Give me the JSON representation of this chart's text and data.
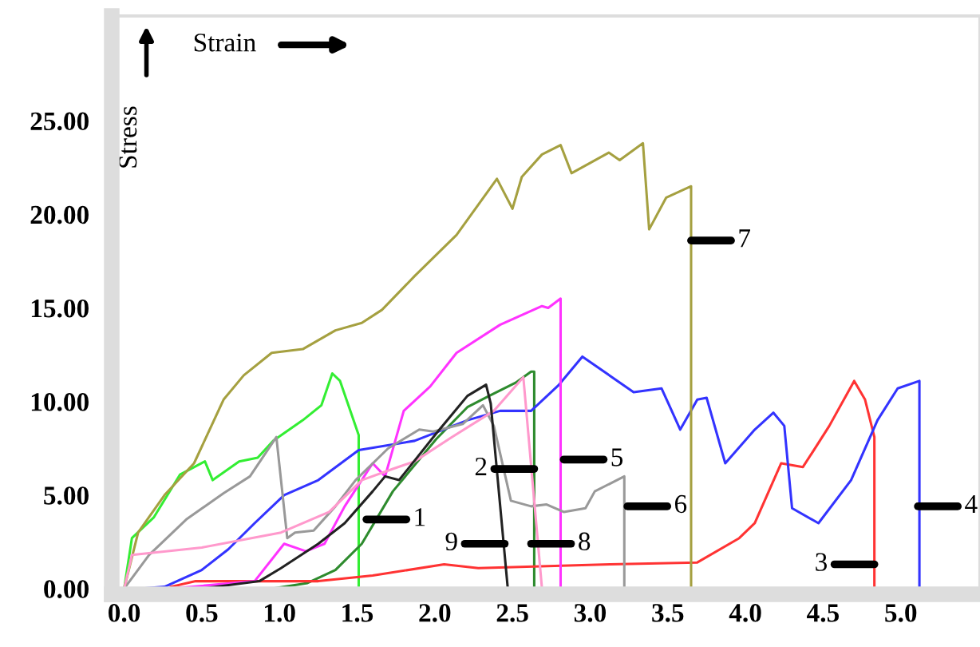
{
  "chart_data": {
    "type": "line",
    "xlabel": "Strain",
    "ylabel": "Stress",
    "xlim": [
      -0.08,
      5.51
    ],
    "ylim": [
      -0.3,
      30.6
    ],
    "xticks": [
      {
        "value": 0,
        "label": "0.0"
      },
      {
        "value": 0.5,
        "label": "0.5"
      },
      {
        "value": 1,
        "label": "1.0"
      },
      {
        "value": 1.5,
        "label": "1.5"
      },
      {
        "value": 2,
        "label": "2.0"
      },
      {
        "value": 2.5,
        "label": "2.5"
      },
      {
        "value": 3,
        "label": "3.0"
      },
      {
        "value": 3.5,
        "label": "3.5"
      },
      {
        "value": 4,
        "label": "4.0"
      },
      {
        "value": 4.5,
        "label": "4.5"
      },
      {
        "value": 5,
        "label": "5.0"
      }
    ],
    "yticks": [
      {
        "value": 0,
        "label": "0.00"
      },
      {
        "value": 5,
        "label": "5.00"
      },
      {
        "value": 10,
        "label": "10.00"
      },
      {
        "value": 15,
        "label": "15.00"
      },
      {
        "value": 20,
        "label": "20.00"
      },
      {
        "value": 25,
        "label": "25.00"
      }
    ],
    "grid": false,
    "legend": false,
    "marker": "none",
    "line_style": "solid",
    "series": [
      {
        "color": "#33ee33",
        "x": [
          0,
          0.05,
          0.19,
          0.36,
          0.52,
          0.57,
          0.74,
          0.86,
          0.96,
          1.15,
          1.27,
          1.34,
          1.39,
          1.51,
          1.51
        ],
        "values": [
          0,
          2.7,
          3.8,
          6.1,
          6.8,
          5.8,
          6.8,
          7.0,
          7.9,
          9.0,
          9.8,
          11.5,
          11.1,
          8.2,
          0
        ]
      },
      {
        "color": "#2e8b2e",
        "x": [
          0.95,
          1.18,
          1.36,
          1.53,
          1.73,
          2.01,
          2.21,
          2.35,
          2.52,
          2.62,
          2.64,
          2.64
        ],
        "values": [
          0,
          0.3,
          1.0,
          2.4,
          5.2,
          8.0,
          9.7,
          10.3,
          11.0,
          11.6,
          11.6,
          0
        ]
      },
      {
        "color": "#ff3333",
        "x": [
          0.3,
          0.46,
          1.18,
          1.25,
          1.6,
          2.06,
          2.28,
          3.13,
          3.69,
          3.96,
          4.06,
          4.23,
          4.37,
          4.44,
          4.54,
          4.7,
          4.77,
          4.83,
          4.83
        ],
        "values": [
          0.1,
          0.4,
          0.4,
          0.4,
          0.7,
          1.3,
          1.1,
          1.3,
          1.4,
          2.7,
          3.5,
          6.7,
          6.5,
          7.4,
          8.7,
          11.1,
          10.1,
          8.1,
          0
        ]
      },
      {
        "color": "#3333ff",
        "x": [
          0.1,
          0.26,
          0.5,
          0.67,
          0.84,
          1.03,
          1.25,
          1.51,
          1.87,
          2.21,
          2.42,
          2.62,
          2.8,
          2.95,
          3.28,
          3.46,
          3.58,
          3.69,
          3.75,
          3.87,
          4.06,
          4.18,
          4.25,
          4.3,
          4.47,
          4.68,
          4.85,
          4.98,
          5.12,
          5.12
        ],
        "values": [
          0,
          0.1,
          1.0,
          2.1,
          3.5,
          5.0,
          5.8,
          7.4,
          7.9,
          9.0,
          9.5,
          9.5,
          10.9,
          12.4,
          10.5,
          10.7,
          8.5,
          10.1,
          10.2,
          6.7,
          8.5,
          9.4,
          8.7,
          4.3,
          3.5,
          5.8,
          9.0,
          10.7,
          11.1,
          0
        ]
      },
      {
        "color": "#ff33ff",
        "x": [
          0.3,
          0.84,
          1.03,
          1.17,
          1.29,
          1.42,
          1.6,
          1.68,
          1.8,
          1.97,
          2.14,
          2.42,
          2.69,
          2.73,
          2.81,
          2.81
        ],
        "values": [
          0,
          0.4,
          2.4,
          2.0,
          2.4,
          4.4,
          6.7,
          6.0,
          9.5,
          10.8,
          12.6,
          14.1,
          15.1,
          15.0,
          15.5,
          0
        ]
      },
      {
        "color": "#999999",
        "x": [
          0,
          0.16,
          0.4,
          0.64,
          0.81,
          0.98,
          1.05,
          1.1,
          1.22,
          1.36,
          1.49,
          1.7,
          1.9,
          1.99,
          2.18,
          2.31,
          2.38,
          2.49,
          2.62,
          2.72,
          2.83,
          2.97,
          3.03,
          3.22,
          3.22
        ],
        "values": [
          0,
          1.8,
          3.7,
          5.1,
          6.0,
          8.1,
          2.7,
          3.0,
          3.1,
          4.4,
          5.8,
          7.5,
          8.5,
          8.4,
          8.8,
          9.8,
          8.7,
          4.7,
          4.4,
          4.5,
          4.1,
          4.3,
          5.2,
          6.0,
          0
        ]
      },
      {
        "color": "#a5a040",
        "x": [
          0,
          0.09,
          0.26,
          0.45,
          0.64,
          0.77,
          0.95,
          1.15,
          1.36,
          1.53,
          1.66,
          1.87,
          2.14,
          2.4,
          2.5,
          2.56,
          2.69,
          2.81,
          2.88,
          3.12,
          3.19,
          3.34,
          3.38,
          3.49,
          3.65,
          3.65
        ],
        "values": [
          0,
          3.0,
          5.0,
          6.7,
          10.1,
          11.4,
          12.6,
          12.8,
          13.8,
          14.2,
          14.9,
          16.7,
          18.9,
          21.9,
          20.3,
          22.0,
          23.2,
          23.7,
          22.2,
          23.3,
          22.9,
          23.8,
          19.2,
          20.9,
          21.5,
          0
        ]
      },
      {
        "color": "#ff99cc",
        "x": [
          0,
          0.05,
          0.5,
          1.01,
          1.32,
          1.53,
          1.73,
          1.87,
          2.11,
          2.38,
          2.57,
          2.69
        ],
        "values": [
          0,
          1.8,
          2.2,
          3.0,
          4.1,
          5.8,
          6.4,
          6.8,
          8.1,
          9.5,
          11.3,
          0
        ]
      },
      {
        "color": "#222222",
        "x": [
          0,
          0.5,
          0.87,
          1.01,
          1.25,
          1.42,
          1.6,
          1.68,
          1.77,
          2.01,
          2.21,
          2.33,
          2.36,
          2.47
        ],
        "values": [
          0,
          0,
          0.4,
          1.1,
          2.4,
          3.5,
          5.2,
          6.0,
          5.8,
          8.3,
          10.3,
          10.9,
          9.9,
          0
        ]
      }
    ],
    "annotations": [
      {
        "text": "1",
        "x": 1.56,
        "y": 3.7
      },
      {
        "text": "2",
        "x": 2.64,
        "y": 6.4
      },
      {
        "text": "3",
        "x": 4.83,
        "y": 1.3
      },
      {
        "text": "4",
        "x": 5.11,
        "y": 4.4
      },
      {
        "text": "5",
        "x": 2.83,
        "y": 6.9
      },
      {
        "text": "6",
        "x": 3.24,
        "y": 4.4
      },
      {
        "text": "7",
        "x": 3.65,
        "y": 18.6
      },
      {
        "text": "8",
        "x": 2.62,
        "y": 2.4
      },
      {
        "text": "9",
        "x": 2.45,
        "y": 2.4
      }
    ]
  }
}
